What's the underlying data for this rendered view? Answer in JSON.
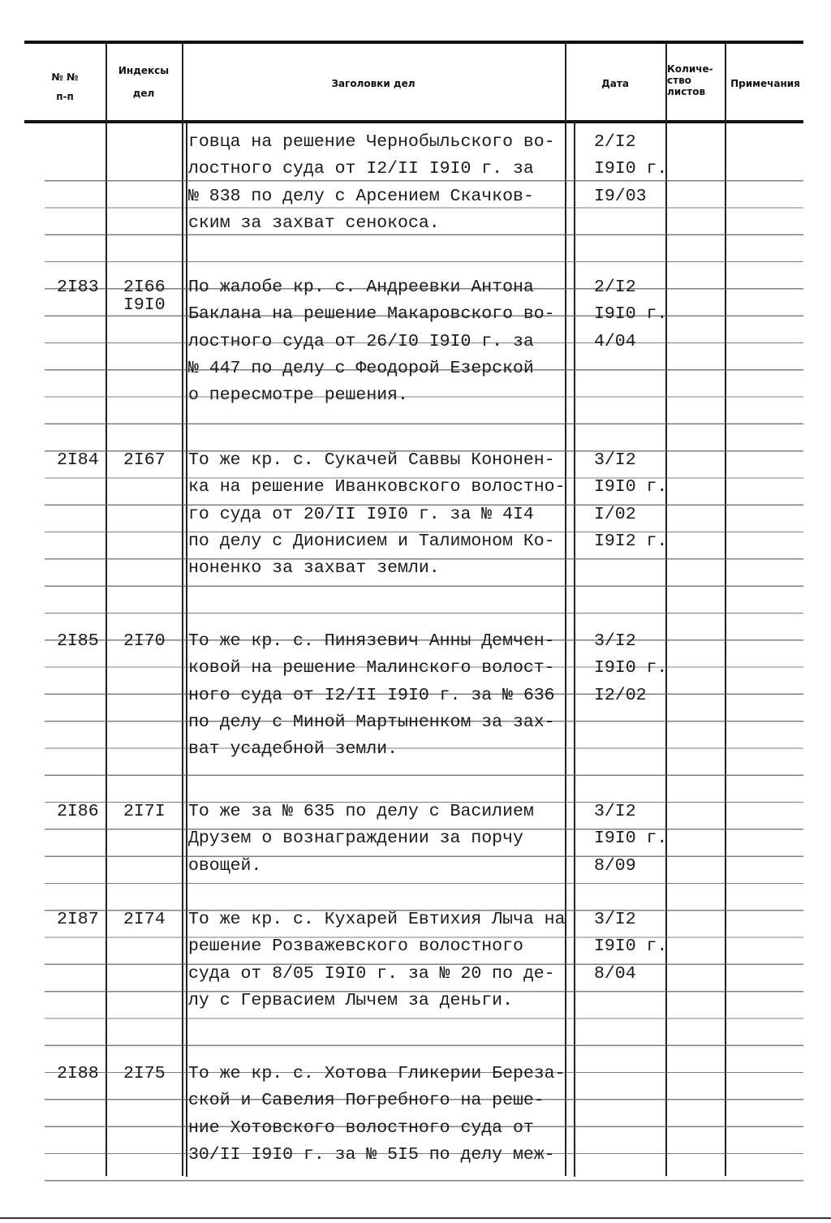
{
  "header": {
    "col_number": "№ №",
    "col_number_sub": "п-п",
    "col_index": "Индексы",
    "col_index_sub": "дел",
    "col_title": "Заголовки дел",
    "col_date": "Дата",
    "col_sheets": "Количе-\nство\nлистов",
    "col_notes": "Примечания"
  },
  "entries": [
    {
      "number": "",
      "index": "",
      "index_year": "",
      "title_lines": [
        "говца на решение Чернобыльского во-",
        "лостного суда от I2/II I9I0 г. за",
        "№ 838 по делу с Арсением Скачков-",
        "ским за захват сенокоса."
      ],
      "date_lines": [
        "2/I2",
        "I9I0 г.",
        "I9/03"
      ]
    },
    {
      "number": "2I83",
      "index": "2I66",
      "index_year": "I9I0",
      "title_lines": [
        "По жалобе кр. с. Андреевки Антона",
        "Баклана на решение Макаровского во-",
        "лостного суда от 26/I0 I9I0 г. за",
        "№ 447 по делу с Феодорой Езерской",
        "о пересмотре решения."
      ],
      "date_lines": [
        "2/I2",
        "I9I0 г.",
        "4/04"
      ]
    },
    {
      "number": "2I84",
      "index": "2I67",
      "index_year": "",
      "title_lines": [
        "То же кр. с. Сукачей Саввы Кононен-",
        "ка на решение Иванковского волостно-",
        "го суда от 20/II I9I0 г. за № 4I4",
        "по делу с Дионисием и Талимоном Ко-",
        "ноненко за захват земли."
      ],
      "date_lines": [
        "3/I2",
        "I9I0 г.",
        "I/02",
        "I9I2 г."
      ]
    },
    {
      "number": "2I85",
      "index": "2I70",
      "index_year": "",
      "title_lines": [
        "То же кр. с. Пинязевич Анны Демчен-",
        "ковой на решение Малинского волост-",
        "ного суда от I2/II I9I0 г. за № 636",
        "по делу с Миной Мартыненком за зах-",
        "ват усадебной земли."
      ],
      "date_lines": [
        "3/I2",
        "I9I0 г.",
        "I2/02"
      ]
    },
    {
      "number": "2I86",
      "index": "2I7I",
      "index_year": "",
      "title_lines": [
        "То же за № 635 по делу с Василием",
        "Друзем о вознаграждении за порчу",
        "овощей."
      ],
      "date_lines": [
        "3/I2",
        "I9I0 г.",
        "8/09"
      ]
    },
    {
      "number": "2I87",
      "index": "2I74",
      "index_year": "",
      "title_lines": [
        "То же кр. с. Кухарей Евтихия Лыча на",
        "решение Розважевского волостного",
        "суда от 8/05 I9I0 г. за № 20 по де-",
        "лу с Гервасием Лычем за деньги."
      ],
      "date_lines": [
        "3/I2",
        "I9I0 г.",
        "8/04"
      ]
    },
    {
      "number": "2I88",
      "index": "2I75",
      "index_year": "",
      "title_lines": [
        "То же кр. с. Хотова Гликерии Береза-",
        "ской и Савелия Погребного на реше-",
        "ние Хотовского волостного суда от",
        "30/II I9I0 г. за № 5I5 по делу меж-"
      ],
      "date_lines": []
    }
  ]
}
